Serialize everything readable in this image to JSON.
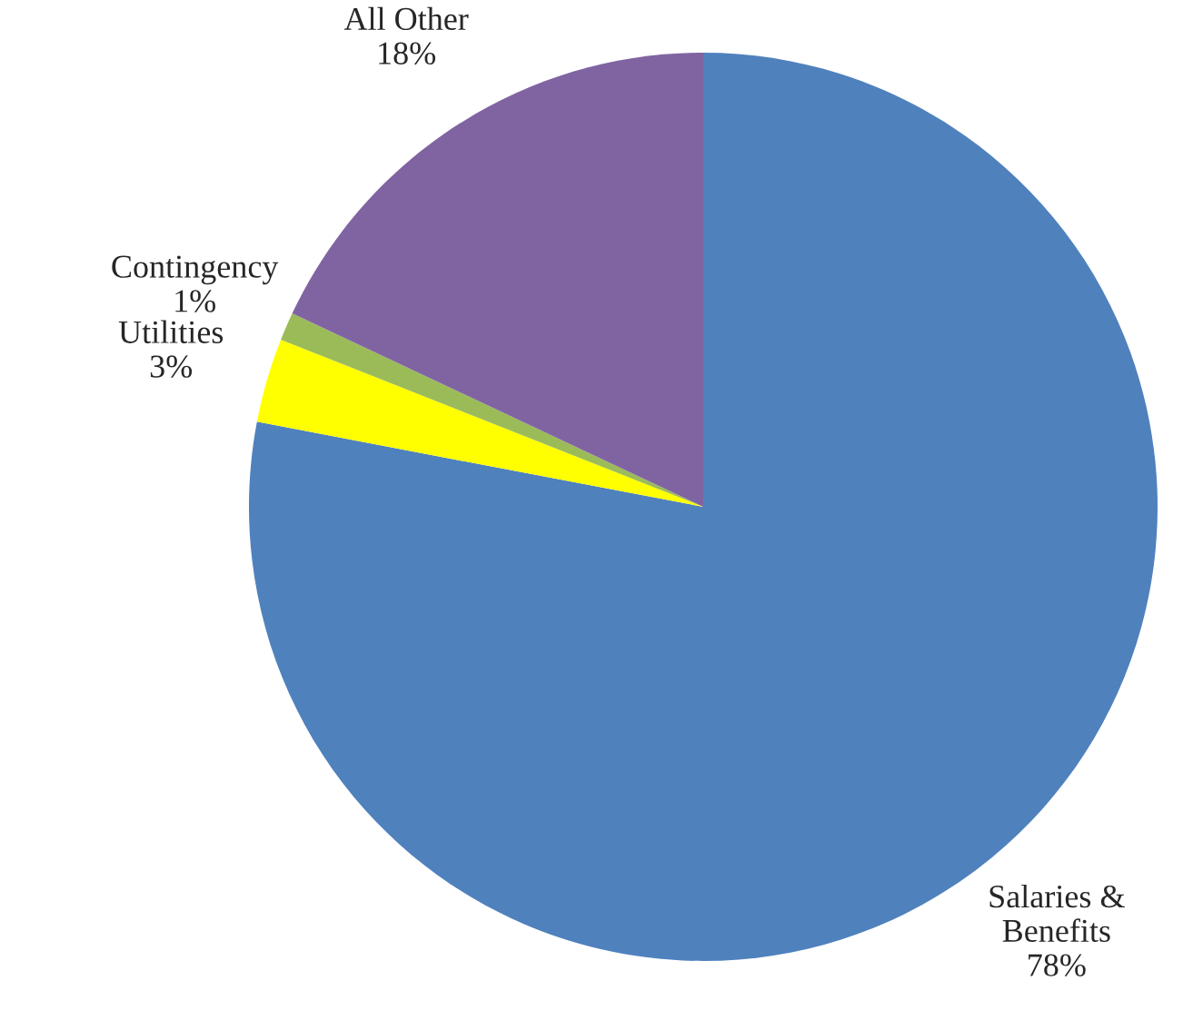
{
  "chart_data": {
    "type": "pie",
    "categories": [
      "Salaries &\nBenefits",
      "Utilities",
      "Contingency",
      "All Other"
    ],
    "values": [
      78,
      3,
      1,
      18
    ],
    "value_labels": [
      "78%",
      "3%",
      "1%",
      "18%"
    ],
    "colors": [
      "#4f81bd",
      "#ffff00",
      "#9bbb59",
      "#8064a2"
    ],
    "legend": false
  }
}
